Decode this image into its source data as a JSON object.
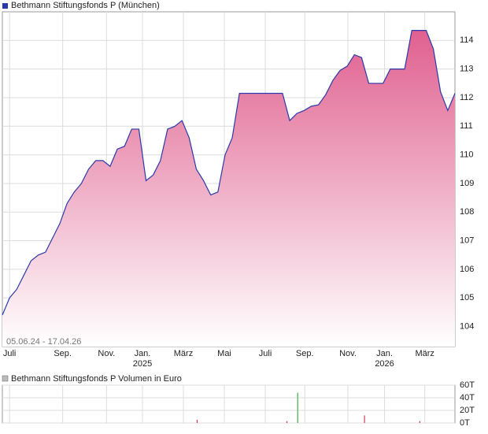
{
  "chart_data": [
    {
      "type": "area",
      "title": "Bethmann Stiftungsfonds P (München)",
      "date_range": "05.06.24 - 17.04.26",
      "color": "#2b3aa8",
      "fill_top": "#e0608f",
      "grid": true,
      "values": [
        104.4,
        105.0,
        105.3,
        105.8,
        106.3,
        106.5,
        106.6,
        107.1,
        107.6,
        108.3,
        108.7,
        109.0,
        109.5,
        109.8,
        109.8,
        109.6,
        110.2,
        110.3,
        110.9,
        110.9,
        109.1,
        109.3,
        109.8,
        110.9,
        111.0,
        111.2,
        110.6,
        109.5,
        109.1,
        108.6,
        108.7,
        110.0,
        110.6,
        112.15,
        112.15,
        112.15,
        112.15,
        112.15,
        112.15,
        112.15,
        111.2,
        111.45,
        111.55,
        111.7,
        111.75,
        112.1,
        112.6,
        112.95,
        113.1,
        113.5,
        113.4,
        112.5,
        112.5,
        112.5,
        113.0,
        113.0,
        113.0,
        114.35,
        114.35,
        114.35,
        113.7,
        112.2,
        111.55,
        112.15
      ],
      "ylim": [
        103.3,
        115
      ],
      "yticks": [
        104,
        105,
        106,
        107,
        108,
        109,
        110,
        111,
        112,
        113,
        114
      ],
      "xlim": [
        0,
        63
      ],
      "xticks": [
        {
          "value": 1,
          "label": "Juli"
        },
        {
          "value": 8.4,
          "label": "Sep."
        },
        {
          "value": 14.5,
          "label": "Nov."
        },
        {
          "value": 19.5,
          "label": "Jan."
        },
        {
          "value": 25.2,
          "label": "März"
        },
        {
          "value": 30.9,
          "label": "Mai"
        },
        {
          "value": 36.6,
          "label": "Juli"
        },
        {
          "value": 42.1,
          "label": "Sep."
        },
        {
          "value": 48.1,
          "label": "Nov."
        },
        {
          "value": 53.2,
          "label": "Jan."
        },
        {
          "value": 58.8,
          "label": "März"
        }
      ],
      "x_year_labels": [
        {
          "value": 19.5,
          "label": "2025"
        },
        {
          "value": 53.2,
          "label": "2026"
        }
      ]
    },
    {
      "type": "bar",
      "title": "Bethmann Stiftungsfonds P Volumen in Euro",
      "x": [
        27.1,
        39.6,
        41.1,
        50.4,
        58.1
      ],
      "values": [
        5000,
        3000,
        48000,
        12000,
        3000
      ],
      "colors": [
        "#d23c5a",
        "#d23c5a",
        "#3cb043",
        "#d23c5a",
        "#d23c5a"
      ],
      "xlim": [
        0,
        63
      ],
      "ylim": [
        0,
        60000
      ],
      "yticks": [
        {
          "value": 60000,
          "label": "60T"
        },
        {
          "value": 40000,
          "label": "40T"
        },
        {
          "value": 20000,
          "label": "20T"
        },
        {
          "value": 0,
          "label": "0T"
        }
      ]
    }
  ]
}
